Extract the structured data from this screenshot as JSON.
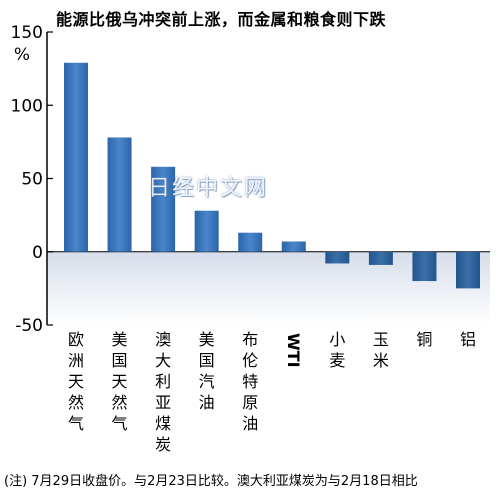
{
  "chart_data": {
    "type": "bar",
    "title": "能源比俄乌冲突前上涨，而金属和粮食则下跌",
    "ylabel": "%",
    "ylim": [
      -50,
      150
    ],
    "yticks": [
      150,
      100,
      50,
      0,
      -50
    ],
    "categories": [
      "欧洲天然气",
      "美国天然气",
      "澳大利亚煤炭",
      "美国汽油",
      "布伦特原油",
      "WTI",
      "小麦",
      "玉米",
      "铜",
      "铝"
    ],
    "values": [
      129,
      78,
      58,
      28,
      13,
      7,
      -8,
      -9,
      -20,
      -25
    ],
    "negative_region_shaded": true,
    "grid": false
  },
  "watermark": "日经中文网",
  "footnote": "(注) 7月29日收盘价。与2月23日比较。澳大利亚煤炭为与2月18日相比",
  "colors": {
    "bar_positive": "#3a72b8",
    "bar_negative": "#2e5f96",
    "negative_band_top": "#d6deea",
    "negative_band_bottom": "#ffffff"
  }
}
